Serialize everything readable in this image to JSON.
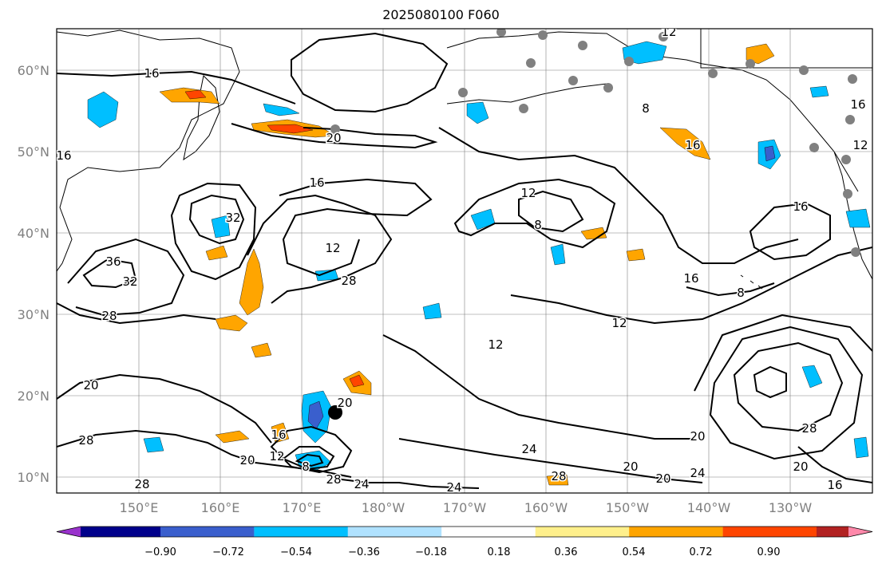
{
  "title": "2025080100 F060",
  "map": {
    "latitude_labels": [
      "10°N",
      "20°N",
      "30°N",
      "40°N",
      "50°N",
      "60°N"
    ],
    "longitude_labels": [
      "150°E",
      "160°E",
      "170°E",
      "180°W",
      "170°W",
      "160°W",
      "150°W",
      "140°W",
      "130°W"
    ],
    "contour_labels": [
      "16",
      "20",
      "12",
      "16",
      "32",
      "16",
      "28",
      "12",
      "36",
      "32",
      "28",
      "12",
      "16",
      "8",
      "12",
      "8",
      "16",
      "12",
      "16",
      "16",
      "8",
      "20",
      "28",
      "16",
      "20",
      "28",
      "12",
      "8",
      "28",
      "24",
      "24",
      "20",
      "24",
      "20",
      "28",
      "20",
      "24",
      "16",
      "28",
      "20",
      "20",
      "12"
    ],
    "colors": {
      "negative_fill": "#00bfff",
      "positive_fill": "#ffa500",
      "strong_positive": "#ff4500",
      "strong_negative": "#3a5fcd",
      "contour": "#000000",
      "grid": "#808080",
      "station": "#808080",
      "storm_marker": "#000000"
    }
  },
  "colorbar": {
    "tick_labels": [
      "−0.90",
      "−0.72",
      "−0.54",
      "−0.36",
      "−0.18",
      "0.18",
      "0.36",
      "0.54",
      "0.72",
      "0.90"
    ],
    "colors": [
      "#9932cc",
      "#00008b",
      "#3a5fcd",
      "#00bfff",
      "#b0e2ff",
      "#ffffff",
      "#fff08c",
      "#ffa500",
      "#ff4500",
      "#b22222",
      "#ff88aa"
    ]
  }
}
